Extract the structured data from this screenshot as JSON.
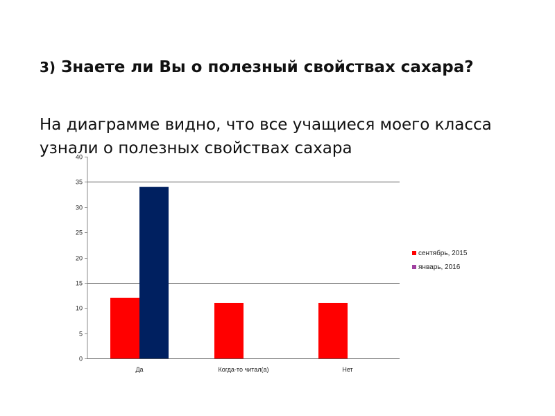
{
  "slide": {
    "heading_num": "3)",
    "heading_text": "Знаете ли Вы о полезный свойствах сахара?",
    "body": "На диаграмме видно, что все учащиеся моего класса узнали о полезных свойствах сахара"
  },
  "chart_data": {
    "type": "bar",
    "categories": [
      "Да",
      "Когда-то читал(а)",
      "Нет"
    ],
    "series": [
      {
        "name": "сентябрь, 2015",
        "color": "#ff0000",
        "values": [
          12,
          11,
          11
        ]
      },
      {
        "name": "январь, 2016",
        "color": "#002060",
        "legend_color": "#a040a0",
        "values": [
          34,
          null,
          null
        ]
      }
    ],
    "ylim": [
      0,
      40
    ],
    "yticks": [
      0,
      5,
      10,
      15,
      20,
      25,
      30,
      35,
      40
    ],
    "gridlines": [
      0,
      15,
      35
    ],
    "legend_position": "right",
    "title": "",
    "xlabel": "",
    "ylabel": ""
  }
}
